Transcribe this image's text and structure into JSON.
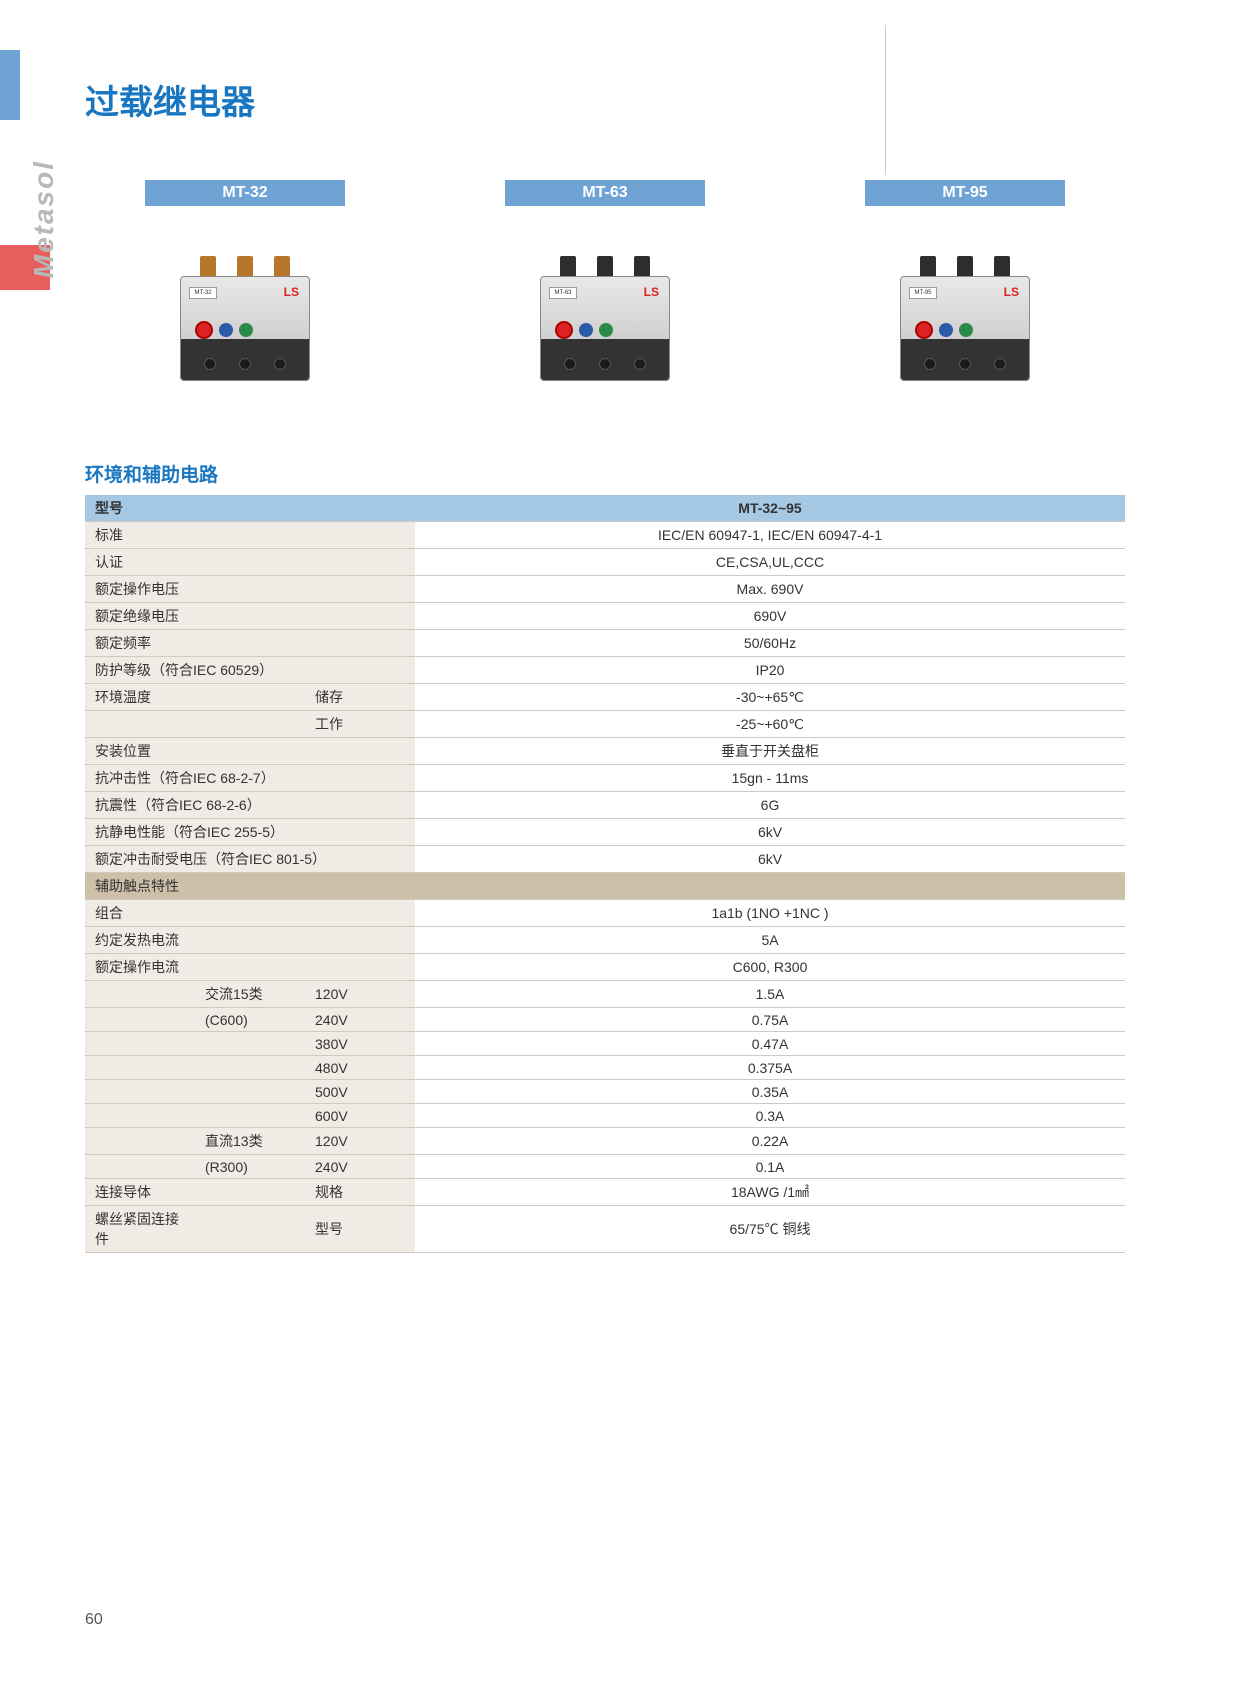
{
  "brand": "Metasol",
  "page_title": "过载继电器",
  "page_number": "60",
  "colors": {
    "accent_blue": "#1976c1",
    "header_blue": "#6fa3d4",
    "table_header_blue": "#a5c8e4",
    "section_tan": "#cdbfa8",
    "row_bg": "#f0ece5",
    "red_tab": "#e85d5d"
  },
  "products": [
    {
      "label": "MT-32",
      "badge": "MT-32",
      "prong_style": "copper"
    },
    {
      "label": "MT-63",
      "badge": "MT-63",
      "prong_style": "black"
    },
    {
      "label": "MT-95",
      "badge": "MT-95",
      "prong_style": "black"
    }
  ],
  "section_title": "环境和辅助电路",
  "table": {
    "header": {
      "col1": "型号",
      "col2": "MT-32~95"
    },
    "rows": [
      {
        "c1": "标准",
        "c2": "",
        "c3": "",
        "val": "IEC/EN 60947-1, IEC/EN 60947-4-1"
      },
      {
        "c1": "认证",
        "c2": "",
        "c3": "",
        "val": "CE,CSA,UL,CCC"
      },
      {
        "c1": "额定操作电压",
        "c2": "",
        "c3": "",
        "val": "Max. 690V"
      },
      {
        "c1": "额定绝缘电压",
        "c2": "",
        "c3": "",
        "val": "690V"
      },
      {
        "c1": "额定频率",
        "c2": "",
        "c3": "",
        "val": "50/60Hz"
      },
      {
        "c1": "防护等级（符合IEC 60529）",
        "c2": "",
        "c3": "",
        "val": "IP20",
        "span3": true
      },
      {
        "c1": "环境温度",
        "c2": "",
        "c3": "储存",
        "val": "-30~+65℃"
      },
      {
        "c1": "",
        "c2": "",
        "c3": "工作",
        "val": "-25~+60℃"
      },
      {
        "c1": "安装位置",
        "c2": "",
        "c3": "",
        "val": "垂直于开关盘柜"
      },
      {
        "c1": "抗冲击性（符合IEC 68-2-7）",
        "c2": "",
        "c3": "",
        "val": "15gn - 11ms",
        "span3": true
      },
      {
        "c1": "抗震性（符合IEC 68-2-6）",
        "c2": "",
        "c3": "",
        "val": "6G",
        "span3": true
      },
      {
        "c1": "抗静电性能（符合IEC 255-5）",
        "c2": "",
        "c3": "",
        "val": "6kV",
        "span3": true
      },
      {
        "c1": "额定冲击耐受电压（符合IEC 801-5）",
        "c2": "",
        "c3": "",
        "val": "6kV",
        "span3": true
      },
      {
        "section": "辅助触点特性"
      },
      {
        "c1": "组合",
        "c2": "",
        "c3": "",
        "val": "1a1b (1NO +1NC )"
      },
      {
        "c1": "约定发热电流",
        "c2": "",
        "c3": "",
        "val": "5A"
      },
      {
        "c1": "额定操作电流",
        "c2": "",
        "c3": "",
        "val": "C600, R300"
      },
      {
        "c1": "",
        "c2": "交流15类",
        "c3": "120V",
        "val": "1.5A"
      },
      {
        "c1": "",
        "c2": "(C600)",
        "c3": "240V",
        "val": "0.75A"
      },
      {
        "c1": "",
        "c2": "",
        "c3": "380V",
        "val": "0.47A"
      },
      {
        "c1": "",
        "c2": "",
        "c3": "480V",
        "val": "0.375A"
      },
      {
        "c1": "",
        "c2": "",
        "c3": "500V",
        "val": "0.35A"
      },
      {
        "c1": "",
        "c2": "",
        "c3": "600V",
        "val": "0.3A"
      },
      {
        "c1": "",
        "c2": "直流13类",
        "c3": "120V",
        "val": "0.22A"
      },
      {
        "c1": "",
        "c2": "(R300)",
        "c3": "240V",
        "val": "0.1A"
      },
      {
        "c1": "连接导体",
        "c2": "",
        "c3": "规格",
        "val": "18AWG /1㎟"
      },
      {
        "c1": "螺丝紧固连接件",
        "c2": "",
        "c3": "型号",
        "val": "65/75℃ 铜线"
      }
    ]
  }
}
